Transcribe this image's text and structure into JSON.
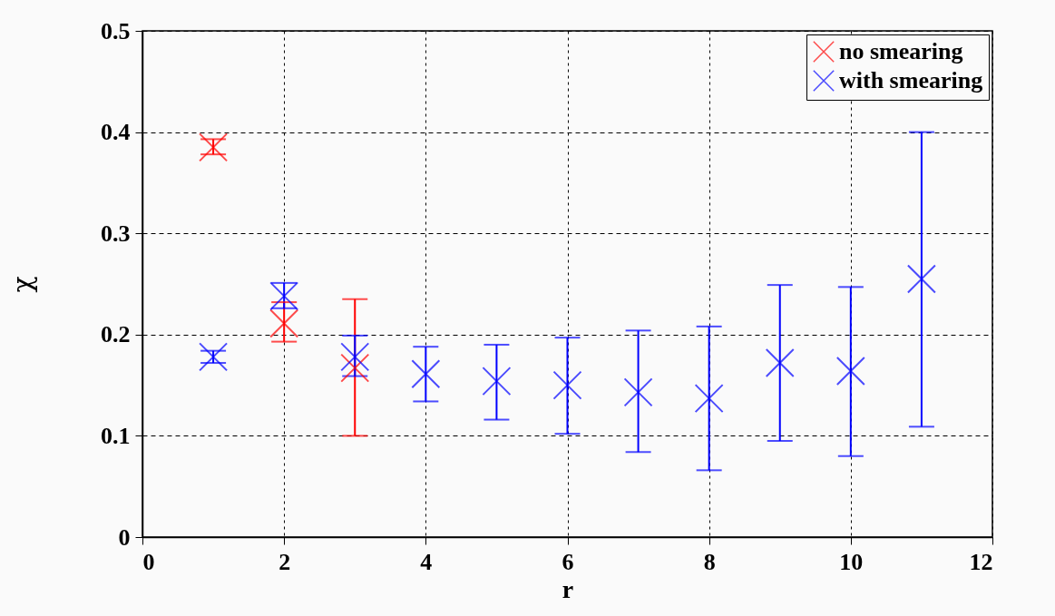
{
  "chart_data": {
    "type": "scatter",
    "xlabel": "r",
    "ylabel": "χ",
    "xlim": [
      0,
      12
    ],
    "xticks": [
      0,
      2,
      4,
      6,
      8,
      10,
      12
    ],
    "ylim": [
      0,
      0.5
    ],
    "yticks": [
      0,
      0.1,
      0.2,
      0.3,
      0.4,
      0.5
    ],
    "grid": true,
    "legend": "top right",
    "marker": "cross",
    "series": [
      {
        "name": "no smearing",
        "color": "#ff0000",
        "x": [
          1,
          2,
          3
        ],
        "values": [
          0.385,
          0.211,
          0.167
        ],
        "errors": [
          [
            0.378,
            0.393
          ],
          [
            0.193,
            0.232
          ],
          [
            0.1,
            0.235
          ]
        ]
      },
      {
        "name": "with smearing",
        "color": "#0000ff",
        "x": [
          1,
          2,
          3,
          4,
          5,
          6,
          7,
          8,
          9,
          10,
          11
        ],
        "values": [
          0.178,
          0.238,
          0.178,
          0.161,
          0.154,
          0.15,
          0.143,
          0.137,
          0.172,
          0.164,
          0.255
        ],
        "errors": [
          [
            0.172,
            0.184
          ],
          [
            0.226,
            0.251
          ],
          [
            0.159,
            0.199
          ],
          [
            0.134,
            0.188
          ],
          [
            0.116,
            0.19
          ],
          [
            0.102,
            0.197
          ],
          [
            0.084,
            0.204
          ],
          [
            0.066,
            0.208
          ],
          [
            0.095,
            0.249
          ],
          [
            0.08,
            0.247
          ],
          [
            0.109,
            0.4
          ]
        ]
      }
    ]
  }
}
